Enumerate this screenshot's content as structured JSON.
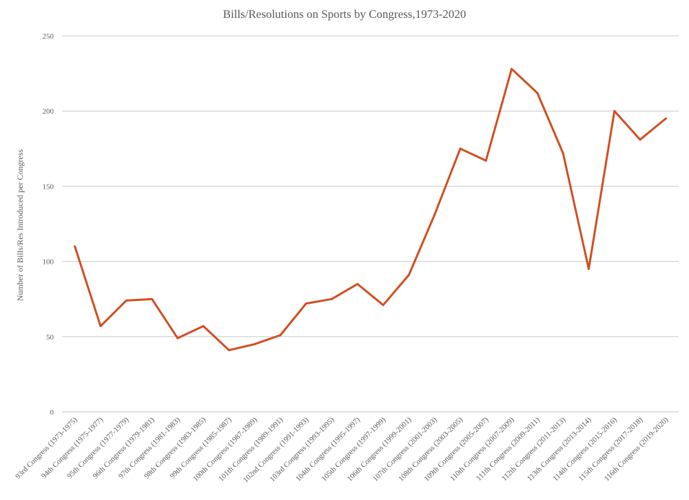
{
  "chart_data": {
    "type": "line",
    "title": "Bills/Resolutions on Sports by Congress,1973-2020",
    "xlabel": "",
    "ylabel": "Number of Bills/Res Introduced per Congress",
    "ylim": [
      0,
      250
    ],
    "yticks": [
      0,
      50,
      100,
      150,
      200,
      250
    ],
    "grid": true,
    "legend": "none",
    "categories": [
      "93rd Congress (1973-1975)",
      "94th Congress (1975-1977)",
      "95th Congress (1977-1979)",
      "96th Congress (1979-1981)",
      "97th Congress (1981-1983)",
      "98th Congress (1983-1985)",
      "99th Congress (1985-1987)",
      "100th Congress (1987-1989)",
      "101th Congress (1989-1991)",
      "102nd Congress (1991-1993)",
      "103rd Congress (1993-1995)",
      "104th Congress (1995-1997)",
      "105th Congress (1997-1999)",
      "106th Congress (1999-2001)",
      "107th Congress (2001-2003)",
      "108th Congress (2003-2005)",
      "109th Congress (2005-2007)",
      "110th Congress (2007-2009)",
      "111th Congress (2009-2011)",
      "112th Congress (2011-2013)",
      "113th Congress (2013-2014)",
      "114th Congress (2015-2016)",
      "115th Congress (2017-2018)",
      "116th Congress (2019-2020)"
    ],
    "series": [
      {
        "name": "Bills/Resolutions",
        "color": "#d14d1f",
        "values": [
          110,
          57,
          74,
          75,
          49,
          57,
          41,
          45,
          51,
          72,
          75,
          85,
          71,
          91,
          131,
          175,
          167,
          228,
          212,
          172,
          95,
          200,
          181,
          195
        ]
      }
    ]
  }
}
